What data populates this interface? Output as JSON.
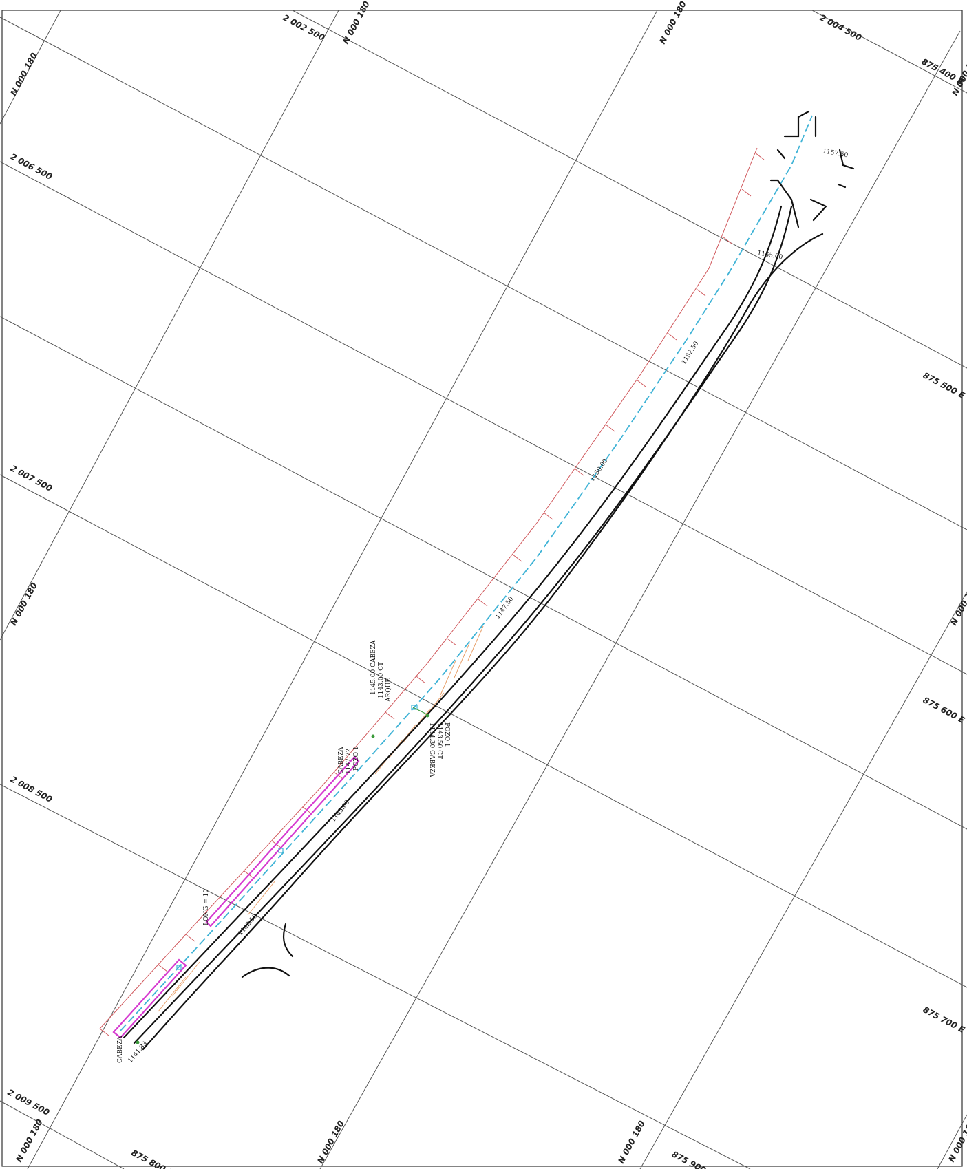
{
  "colors": {
    "pavement_edge": "#111111",
    "water_line": "#3fb3d6",
    "right_of_way": "#d0585c",
    "hatching": "#e8a06a",
    "magenta_feature": "#d63bd0",
    "grid": "#555555"
  },
  "grid_labels": {
    "top_1": "2 002 500",
    "top_2": "N 000 180",
    "top_3": "N 000 180",
    "top_4": "2 004 500",
    "top_right": "875 400 E",
    "right_upper": "N 000 180",
    "right_mid": "875 500 E",
    "right_mid2": "N 000 180",
    "right_lower": "875 600 E",
    "right_bottom": "875 700 E",
    "bottom_right": "N 000 180",
    "left_top": "N 000 180",
    "left_1": "2 006 500",
    "left_2": "2 007 500",
    "left_3": "N 000 180",
    "left_4": "2 008 500",
    "left_bottom": "2 009 500",
    "bottom_1": "N 000 180",
    "bottom_2": "875 800 E",
    "bottom_3": "N 000 180",
    "bottom_4": "N 000 180",
    "bottom_5": "875 900"
  },
  "chainages": {
    "c1": "1157.50",
    "c2": "1155.00",
    "c3": "1152.50",
    "c4": "1150.00",
    "c5": "1147.50",
    "c6": "1145.00",
    "c7": "1142.50",
    "c8": "1141.83"
  },
  "notes": {
    "n1": "1145.00 CABEZA",
    "n2": "1143.00 CT",
    "n3": "ARQUE",
    "n4": "POZO 1",
    "n5": "1144.30 CABEZA",
    "n6": "1143.50 CT",
    "n7": "POZO 1",
    "n8": "1147.72",
    "n9": "CABEZA",
    "n10": "CABEZA",
    "n11": "LONG = 10"
  }
}
